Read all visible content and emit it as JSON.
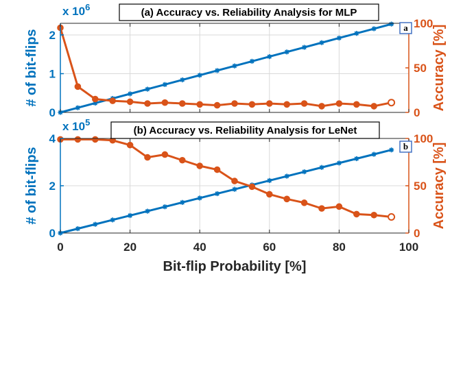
{
  "colors": {
    "left": "#0072BD",
    "right": "#D95319",
    "grid": "#d9d9d9",
    "axis": "#262626",
    "badge_border": "#4472C4"
  },
  "xlabel": "Bit-flip Probability [%]",
  "x_ticks": [
    "0",
    "20",
    "40",
    "60",
    "80",
    "100"
  ],
  "chart_data": [
    {
      "type": "line",
      "title": "(a) Accuracy vs. Reliability Analysis for MLP",
      "badge": "a",
      "xlim": [
        0,
        100
      ],
      "x": [
        0,
        5,
        10,
        15,
        20,
        25,
        30,
        35,
        40,
        45,
        50,
        55,
        60,
        65,
        70,
        75,
        80,
        85,
        90,
        95
      ],
      "left_axis": {
        "label": "# of bit-flips",
        "multiplier_base": "x 10",
        "multiplier_exp": "6",
        "ylim": [
          0,
          2.3
        ],
        "ticks": [
          0,
          1,
          2
        ],
        "tick_labels": [
          "0",
          "1",
          "2"
        ],
        "marker": "asterisk",
        "values": [
          0.0,
          0.12,
          0.24,
          0.36,
          0.48,
          0.6,
          0.72,
          0.84,
          0.96,
          1.08,
          1.2,
          1.32,
          1.44,
          1.56,
          1.68,
          1.8,
          1.92,
          2.04,
          2.16,
          2.28
        ]
      },
      "right_axis": {
        "label": "Accuracy [%]",
        "ylim": [
          0,
          100
        ],
        "ticks": [
          0,
          50,
          100
        ],
        "tick_labels": [
          "0",
          "50",
          "100"
        ],
        "marker": "circle",
        "values": [
          95,
          29,
          15,
          13,
          12,
          10,
          11,
          10,
          9,
          8,
          10,
          9,
          10,
          9,
          10,
          7,
          10,
          9,
          7,
          11
        ]
      }
    },
    {
      "type": "line",
      "title": "(b) Accuracy vs. Reliability Analysis for LeNet",
      "badge": "b",
      "xlim": [
        0,
        100
      ],
      "x": [
        0,
        5,
        10,
        15,
        20,
        25,
        30,
        35,
        40,
        45,
        50,
        55,
        60,
        65,
        70,
        75,
        80,
        85,
        90,
        95
      ],
      "left_axis": {
        "label": "# of bit-flips",
        "multiplier_base": "x 10",
        "multiplier_exp": "5",
        "ylim": [
          0,
          4
        ],
        "ticks": [
          0,
          2,
          4
        ],
        "tick_labels": [
          "0",
          "2",
          "4"
        ],
        "marker": "asterisk",
        "values": [
          0.0,
          0.185,
          0.37,
          0.555,
          0.74,
          0.925,
          1.11,
          1.295,
          1.48,
          1.665,
          1.85,
          2.035,
          2.22,
          2.405,
          2.59,
          2.775,
          2.96,
          3.145,
          3.33,
          3.515
        ]
      },
      "right_axis": {
        "label": "Accuracy [%]",
        "ylim": [
          0,
          100
        ],
        "ticks": [
          0,
          50,
          100
        ],
        "tick_labels": [
          "0",
          "50",
          "100"
        ],
        "marker": "circle",
        "values": [
          99,
          99,
          99,
          98,
          93,
          80,
          83,
          77,
          71,
          67,
          55,
          49,
          41,
          36,
          32,
          26,
          28,
          20,
          19,
          17
        ]
      }
    }
  ]
}
